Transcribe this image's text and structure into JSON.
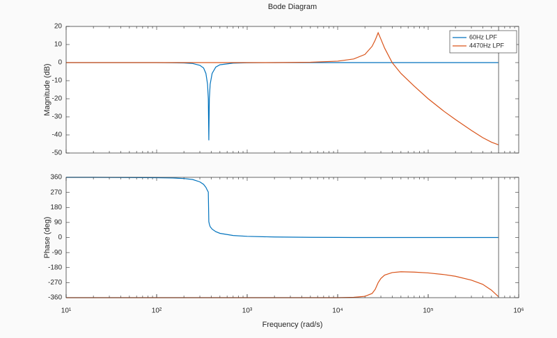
{
  "chart_data": [
    {
      "type": "line",
      "title": "Bode Diagram",
      "ylabel": "Magnitude (dB)",
      "log_x": true,
      "xlim": [
        10,
        1000000
      ],
      "ylim": [
        -50,
        20
      ],
      "yticks": [
        20,
        10,
        0,
        -10,
        -20,
        -30,
        -40,
        -50
      ],
      "legend": "northeast",
      "xline": 600000,
      "x": [
        10,
        20,
        50,
        100,
        150,
        200,
        250,
        300,
        330,
        350,
        365,
        372,
        377,
        382,
        390,
        410,
        450,
        500,
        700,
        1000,
        2000,
        5000,
        10000,
        15000,
        20000,
        24000,
        26000,
        28000,
        30000,
        33000,
        40000,
        50000,
        70000,
        100000,
        150000,
        200000,
        300000,
        400000,
        500000,
        600000
      ],
      "series": [
        {
          "name": "60Hz LPF",
          "color": "#0072BD",
          "values": [
            0,
            0,
            0,
            0,
            -0.1,
            -0.2,
            -0.5,
            -1.5,
            -3,
            -6,
            -12,
            -20,
            -43,
            -20,
            -12,
            -6,
            -2.5,
            -1.2,
            -0.3,
            -0.1,
            0,
            0,
            0,
            0,
            0,
            0,
            0,
            0,
            0,
            0,
            0,
            0,
            0,
            0,
            0,
            0,
            0,
            0,
            0,
            0
          ]
        },
        {
          "name": "4470Hz LPF",
          "color": "#D95319",
          "values": [
            0,
            0,
            0,
            0,
            0,
            0,
            0,
            0,
            0,
            0,
            0,
            0,
            0,
            0,
            0,
            0,
            0,
            0,
            0,
            0,
            0,
            0.2,
            0.8,
            2,
            4.5,
            9,
            12.5,
            16.5,
            13,
            8,
            0,
            -6,
            -13,
            -20,
            -27,
            -31.5,
            -37.5,
            -41.5,
            -44,
            -45.5
          ]
        }
      ]
    },
    {
      "type": "line",
      "ylabel": "Phase (deg)",
      "xlabel": "Frequency (rad/s)",
      "log_x": true,
      "xlim": [
        10,
        1000000
      ],
      "xticks": [
        {
          "value": 10,
          "label": "10¹"
        },
        {
          "value": 100,
          "label": "10²"
        },
        {
          "value": 1000,
          "label": "10³"
        },
        {
          "value": 10000,
          "label": "10⁴"
        },
        {
          "value": 100000,
          "label": "10⁵"
        },
        {
          "value": 1000000,
          "label": "10⁶"
        }
      ],
      "ylim": [
        -360,
        360
      ],
      "yticks": [
        360,
        270,
        180,
        90,
        0,
        -90,
        -180,
        -270,
        -360
      ],
      "xline": 600000,
      "x": [
        10,
        20,
        50,
        100,
        150,
        200,
        250,
        300,
        330,
        350,
        365,
        372,
        377,
        382,
        390,
        410,
        450,
        500,
        700,
        1000,
        2000,
        5000,
        10000,
        15000,
        20000,
        24000,
        26000,
        28000,
        30000,
        33000,
        40000,
        50000,
        70000,
        100000,
        150000,
        200000,
        300000,
        400000,
        500000,
        600000
      ],
      "series": [
        {
          "color": "#0072BD",
          "values": [
            360,
            360,
            359,
            358,
            356,
            353,
            347,
            333,
            318,
            300,
            280,
            272,
            95,
            80,
            65,
            50,
            35,
            25,
            12,
            7,
            3,
            1,
            0.5,
            0,
            0,
            0,
            0,
            0,
            0,
            0,
            0,
            0,
            0,
            0,
            0,
            0,
            0,
            0,
            0,
            0
          ]
        },
        {
          "color": "#D95319",
          "values": [
            -360,
            -360,
            -360,
            -360,
            -360,
            -360,
            -360,
            -360,
            -360,
            -360,
            -360,
            -360,
            -360,
            -360,
            -360,
            -360,
            -360,
            -360,
            -360,
            -360,
            -360,
            -360,
            -360,
            -358,
            -352,
            -335,
            -310,
            -270,
            -245,
            -225,
            -210,
            -205,
            -207,
            -212,
            -222,
            -232,
            -255,
            -280,
            -315,
            -355
          ]
        }
      ]
    }
  ]
}
